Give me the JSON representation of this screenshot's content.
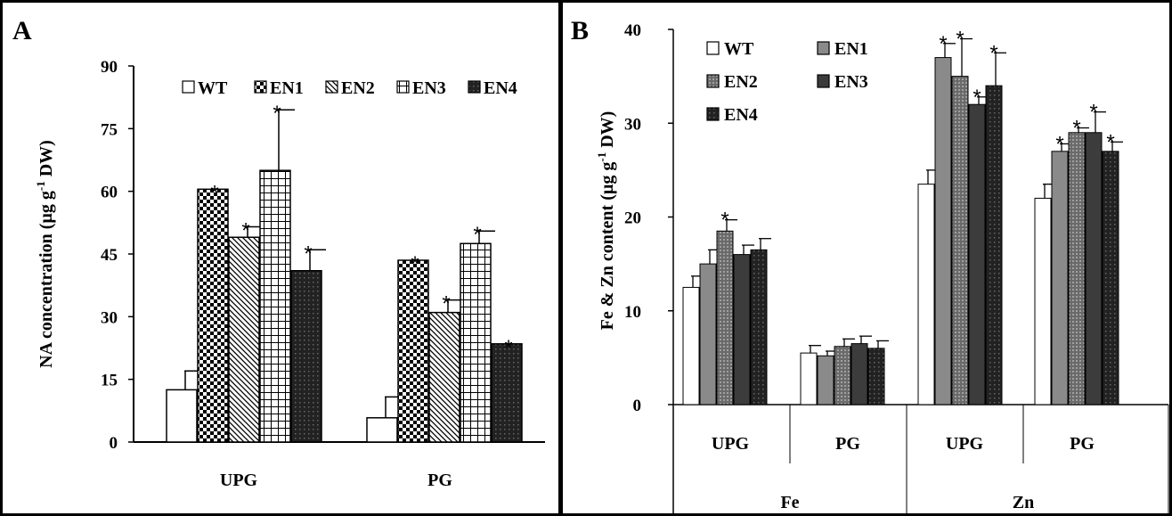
{
  "chart_data": [
    {
      "panel": "A",
      "type": "bar",
      "ylabel": "NA concentration (µg g-1 DW)",
      "ylabel_parts": {
        "pre": "NA concentration (µg g",
        "sup": "-1",
        "post": " DW)"
      },
      "ylim": [
        0,
        90
      ],
      "yticks": [
        0,
        15,
        30,
        45,
        60,
        75,
        90
      ],
      "categories": [
        "UPG",
        "PG"
      ],
      "legend": "top",
      "series": [
        {
          "name": "WT",
          "pattern": "white",
          "values": [
            12.5,
            5.8
          ],
          "errors": [
            4.5,
            5.0
          ],
          "star": [
            false,
            false
          ]
        },
        {
          "name": "EN1",
          "pattern": "checker",
          "values": [
            60.5,
            43.5
          ],
          "errors": [
            0.0,
            0.0
          ],
          "star": [
            true,
            true
          ]
        },
        {
          "name": "EN2",
          "pattern": "diag",
          "values": [
            49.0,
            31.0
          ],
          "errors": [
            2.5,
            3.0
          ],
          "star": [
            true,
            true
          ]
        },
        {
          "name": "EN3",
          "pattern": "grid",
          "values": [
            65.0,
            47.5
          ],
          "errors": [
            14.5,
            3.0
          ],
          "star": [
            true,
            true
          ]
        },
        {
          "name": "EN4",
          "pattern": "darkdot",
          "values": [
            41.0,
            23.5
          ],
          "errors": [
            5.0,
            0.0
          ],
          "star": [
            true,
            true
          ]
        }
      ]
    },
    {
      "panel": "B",
      "type": "bar",
      "ylabel": "Fe & Zn content (µg g-1 DW)",
      "ylabel_parts": {
        "pre": "Fe  & Zn content (µg g",
        "sup": "-1",
        "post": " DW)"
      },
      "ylim": [
        0,
        40
      ],
      "yticks": [
        0,
        10,
        20,
        30,
        40
      ],
      "categories": [
        "UPG",
        "PG",
        "UPG",
        "PG"
      ],
      "groups": [
        "Fe",
        "Zn"
      ],
      "legend": "top-left",
      "series": [
        {
          "name": "WT",
          "pattern": "white",
          "values": [
            12.5,
            5.5,
            23.5,
            22.0
          ],
          "errors": [
            1.2,
            0.8,
            1.5,
            1.5
          ],
          "star": [
            false,
            false,
            false,
            false
          ]
        },
        {
          "name": "EN1",
          "pattern": "gray",
          "values": [
            15.0,
            5.2,
            37.0,
            27.0
          ],
          "errors": [
            1.5,
            0.5,
            1.5,
            0.8
          ],
          "star": [
            false,
            false,
            true,
            true
          ]
        },
        {
          "name": "EN2",
          "pattern": "dotgray",
          "values": [
            18.5,
            6.2,
            35.0,
            29.0
          ],
          "errors": [
            1.2,
            0.8,
            4.0,
            0.5
          ],
          "star": [
            true,
            false,
            true,
            true
          ]
        },
        {
          "name": "EN3",
          "pattern": "darkgray",
          "values": [
            16.0,
            6.5,
            32.0,
            29.0
          ],
          "errors": [
            1.0,
            0.8,
            0.8,
            2.2
          ],
          "star": [
            false,
            false,
            true,
            true
          ]
        },
        {
          "name": "EN4",
          "pattern": "darkdot",
          "values": [
            16.5,
            6.0,
            34.0,
            27.0
          ],
          "errors": [
            1.2,
            0.8,
            3.5,
            1.0
          ],
          "star": [
            false,
            false,
            true,
            true
          ]
        }
      ]
    }
  ],
  "panel_labels": {
    "a": "A",
    "b": "B"
  },
  "star_symbol": "*"
}
